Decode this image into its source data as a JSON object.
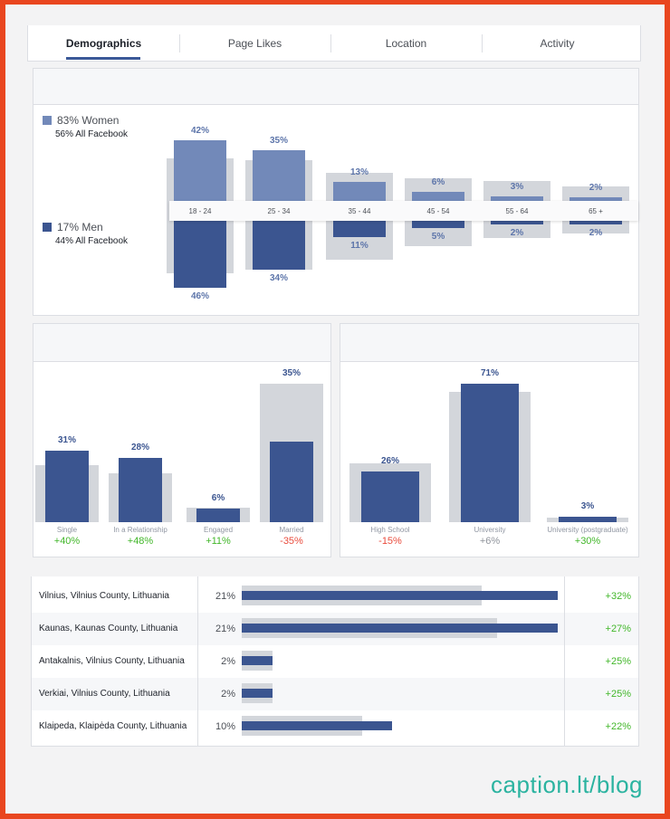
{
  "tabs": [
    "Demographics",
    "Page Likes",
    "Location",
    "Activity"
  ],
  "gender": {
    "women": {
      "label": "83% Women",
      "sub": "56% All Facebook"
    },
    "men": {
      "label": "17% Men",
      "sub": "44% All Facebook"
    }
  },
  "ages": [
    {
      "range": "18 - 24",
      "women": "42%",
      "men": "46%"
    },
    {
      "range": "25 - 34",
      "women": "35%",
      "men": "34%"
    },
    {
      "range": "35 - 44",
      "women": "13%",
      "men": "11%"
    },
    {
      "range": "45 - 54",
      "women": "6%",
      "men": "5%"
    },
    {
      "range": "55 - 64",
      "women": "3%",
      "men": "2%"
    },
    {
      "range": "65 +",
      "women": "2%",
      "men": "2%"
    }
  ],
  "relationship": [
    {
      "label": "Single",
      "value": "31%",
      "delta": "+40%"
    },
    {
      "label": "In a Relationship",
      "value": "28%",
      "delta": "+48%"
    },
    {
      "label": "Engaged",
      "value": "6%",
      "delta": "+11%"
    },
    {
      "label": "Married",
      "value": "35%",
      "delta": "-35%"
    }
  ],
  "education": [
    {
      "label": "High School",
      "value": "26%",
      "delta": "-15%"
    },
    {
      "label": "University",
      "value": "71%",
      "delta": "+6%"
    },
    {
      "label": "University (postgraduate)",
      "value": "3%",
      "delta": "+30%"
    }
  ],
  "locations": [
    {
      "city": "Vilnius, Vilnius County, Lithuania",
      "value": "21%",
      "delta": "+32%"
    },
    {
      "city": "Kaunas, Kaunas County, Lithuania",
      "value": "21%",
      "delta": "+27%"
    },
    {
      "city": "Antakalnis, Vilnius County, Lithuania",
      "value": "2%",
      "delta": "+25%"
    },
    {
      "city": "Verkiai, Vilnius County, Lithuania",
      "value": "2%",
      "delta": "+25%"
    },
    {
      "city": "Klaipeda, Klaipėda County, Lithuania",
      "value": "10%",
      "delta": "+22%"
    }
  ],
  "watermark": "caption.lt/blog",
  "colors": {
    "accent": "#3b5998",
    "positive": "#42b72a",
    "negative": "#e94b3c"
  }
}
